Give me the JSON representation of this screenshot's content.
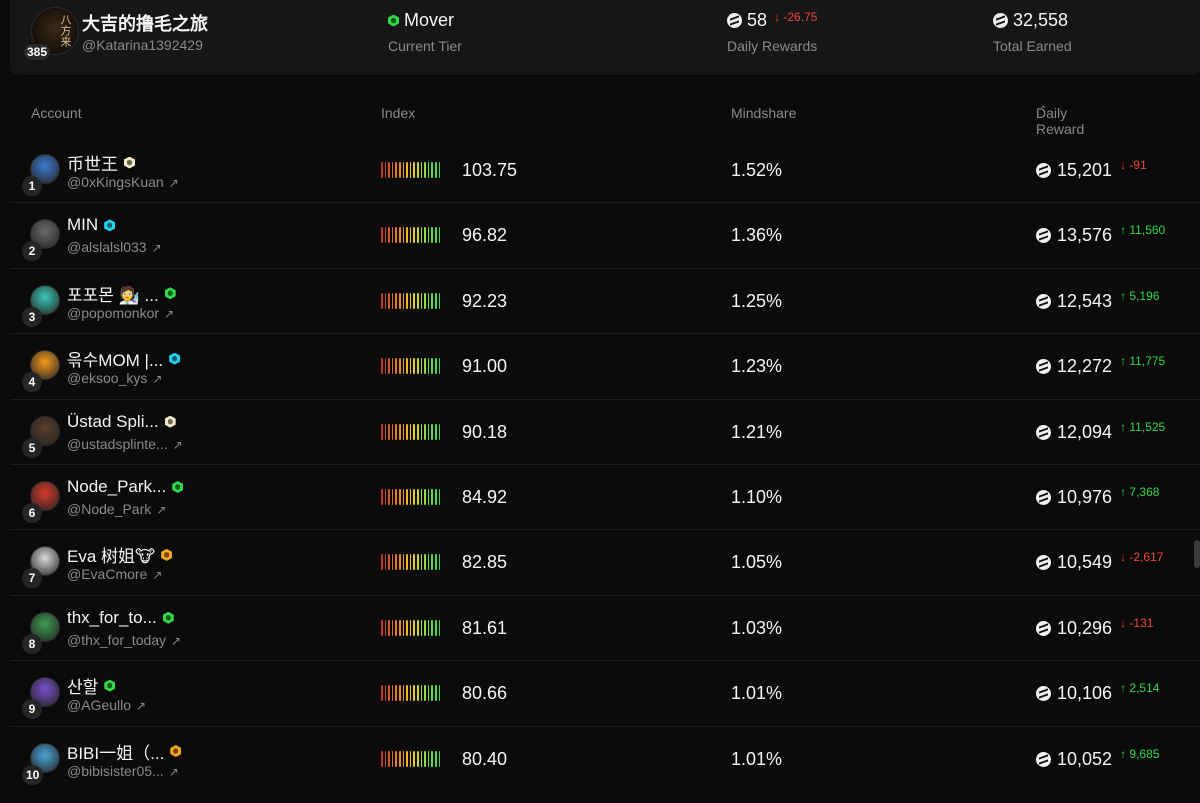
{
  "header": {
    "avatar_count": "385",
    "name": "大吉的撸毛之旅",
    "handle": "@Katarina1392429",
    "tier": {
      "value": "Mover",
      "label": "Current Tier",
      "badge_color": "#32d74b"
    },
    "daily": {
      "value": "58",
      "delta": "↓ -26.75",
      "label": "Daily Rewards"
    },
    "total": {
      "value": "32,558",
      "label": "Total Earned"
    }
  },
  "table": {
    "headers": {
      "account": "Account",
      "index": "Index",
      "mindshare": "Mindshare",
      "reward": "Daily Reward"
    },
    "rows": [
      {
        "rank": "1",
        "name": "币世王",
        "badge": "#f5e9c8",
        "handle": "@0xKingsKuan",
        "index": "103.75",
        "mindshare": "1.52%",
        "reward": "15,201",
        "delta": "↓ -91",
        "dir": "down",
        "avatar": "#3f7ad0"
      },
      {
        "rank": "2",
        "name": "MIN",
        "badge": "#22d3ee",
        "handle": "@alslalsl033",
        "index": "96.82",
        "mindshare": "1.36%",
        "reward": "13,576",
        "delta": "↑ 11,560",
        "dir": "up",
        "avatar": "#6b6b6b"
      },
      {
        "rank": "3",
        "name": "포포몬 🧑‍🔬 ...",
        "badge": "#32d74b",
        "handle": "@popomonkor",
        "index": "92.23",
        "mindshare": "1.25%",
        "reward": "12,543",
        "delta": "↑ 5,196",
        "dir": "up",
        "avatar": "#3cc6b8"
      },
      {
        "rank": "4",
        "name": "윾수MOM |...",
        "badge": "#22d3ee",
        "handle": "@eksoo_kys",
        "index": "91.00",
        "mindshare": "1.23%",
        "reward": "12,272",
        "delta": "↑ 11,775",
        "dir": "up",
        "avatar": "#f59a1c"
      },
      {
        "rank": "5",
        "name": "Üstad Spli...",
        "badge": "#f5e9c8",
        "handle": "@ustadsplinte...",
        "index": "90.18",
        "mindshare": "1.21%",
        "reward": "12,094",
        "delta": "↑ 11,525",
        "dir": "up",
        "avatar": "#5a3e2b"
      },
      {
        "rank": "6",
        "name": "Node_Park...",
        "badge": "#32d74b",
        "handle": "@Node_Park",
        "index": "84.92",
        "mindshare": "1.10%",
        "reward": "10,976",
        "delta": "↑ 7,368",
        "dir": "up",
        "avatar": "#d63a2a"
      },
      {
        "rank": "7",
        "name": "Eva 树姐🐮",
        "badge": "#f5a524",
        "handle": "@EvaCmore",
        "index": "82.85",
        "mindshare": "1.05%",
        "reward": "10,549",
        "delta": "↓ -2,617",
        "dir": "down",
        "avatar": "#d9d9d9"
      },
      {
        "rank": "8",
        "name": "thx_for_to...",
        "badge": "#32d74b",
        "handle": "@thx_for_today",
        "index": "81.61",
        "mindshare": "1.03%",
        "reward": "10,296",
        "delta": "↓ -131",
        "dir": "down",
        "avatar": "#3f9a52"
      },
      {
        "rank": "9",
        "name": "산할",
        "badge": "#32d74b",
        "handle": "@AGeullo",
        "index": "80.66",
        "mindshare": "1.01%",
        "reward": "10,106",
        "delta": "↑ 2,514",
        "dir": "up",
        "avatar": "#7a4fc9"
      },
      {
        "rank": "10",
        "name": "BIBI一姐（...",
        "badge": "#f5a524",
        "handle": "@bibisister05...",
        "index": "80.40",
        "mindshare": "1.01%",
        "reward": "10,052",
        "delta": "↑ 9,685",
        "dir": "up",
        "avatar": "#4aa3d8"
      }
    ]
  }
}
